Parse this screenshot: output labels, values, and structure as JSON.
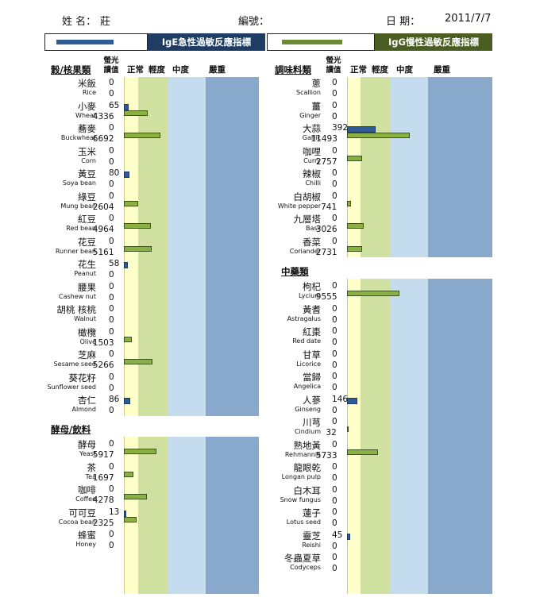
{
  "header": {
    "name_label": "姓 名：",
    "name_value": "莊",
    "id_label": "編號：",
    "date_label": "日 期：",
    "date_value": "2011/7/7"
  },
  "legend": {
    "ige_label": "IgE急性過敏反應指標",
    "igg_label": "IgG慢性過敏反應指標",
    "colors": {
      "ige": "#2f5c94",
      "igg": "#6e8a32",
      "ige_box": "#1f3d64",
      "igg_box": "#4b5e22"
    }
  },
  "column_headers": {
    "value": "螢光讀值",
    "normal": "正常",
    "mild": "輕度",
    "moderate": "中度",
    "severe": "嚴重"
  },
  "zones": {
    "normal": "#ffffcc",
    "mild": "#cfe0a0",
    "moderate": "#c4dcee",
    "severe": "#88a8cc"
  },
  "sections": [
    {
      "title": "穀/核果類",
      "items": [
        {
          "zh": "米飯",
          "en": "Rice",
          "ige": "0",
          "igg": "0"
        },
        {
          "zh": "小麥",
          "en": "Wheat",
          "ige": "65",
          "igg": "4336"
        },
        {
          "zh": "蕎麥",
          "en": "Buckwheat",
          "ige": "0",
          "igg": "6692"
        },
        {
          "zh": "玉米",
          "en": "Corn",
          "ige": "0",
          "igg": "0"
        },
        {
          "zh": "黃豆",
          "en": "Soya bean",
          "ige": "80",
          "igg": "0"
        },
        {
          "zh": "綠豆",
          "en": "Mung bean",
          "ige": "0",
          "igg": "2604"
        },
        {
          "zh": "紅豆",
          "en": "Red bean",
          "ige": "0",
          "igg": "4964"
        },
        {
          "zh": "花豆",
          "en": "Runner bean",
          "ige": "0",
          "igg": "5161"
        },
        {
          "zh": "花生",
          "en": "Peanut",
          "ige": "58",
          "igg": "0"
        },
        {
          "zh": "腰果",
          "en": "Cashew nut",
          "ige": "0",
          "igg": "0"
        },
        {
          "zh": "胡桃 核桃",
          "en": "Walnut",
          "ige": "0",
          "igg": "0"
        },
        {
          "zh": "橄欖",
          "en": "Olive",
          "ige": "0",
          "igg": "1503"
        },
        {
          "zh": "芝麻",
          "en": "Sesame seed",
          "ige": "0",
          "igg": "5266"
        },
        {
          "zh": "葵花籽",
          "en": "Sunflower seed",
          "ige": "0",
          "igg": "0"
        },
        {
          "zh": "杏仁",
          "en": "Almond",
          "ige": "86",
          "igg": "0"
        }
      ]
    },
    {
      "title": "酵母/飲料",
      "items": [
        {
          "zh": "酵母",
          "en": "Yeast",
          "ige": "0",
          "igg": "5917"
        },
        {
          "zh": "茶",
          "en": "Tea",
          "ige": "0",
          "igg": "1697"
        },
        {
          "zh": "咖啡",
          "en": "Coffee",
          "ige": "0",
          "igg": "4278"
        },
        {
          "zh": "可可豆",
          "en": "Cocoa bean",
          "ige": "13",
          "igg": "2325"
        },
        {
          "zh": "蜂蜜",
          "en": "Honey",
          "ige": "0",
          "igg": "0"
        }
      ]
    },
    {
      "title": "調味料類",
      "items": [
        {
          "zh": "蔥",
          "en": "Scallion",
          "ige": "0",
          "igg": "0"
        },
        {
          "zh": "薑",
          "en": "Ginger",
          "ige": "0",
          "igg": "0"
        },
        {
          "zh": "大蒜",
          "en": "Garlic",
          "ige": "392",
          "igg": "11493"
        },
        {
          "zh": "咖哩",
          "en": "Curry",
          "ige": "0",
          "igg": "2757"
        },
        {
          "zh": "辣椒",
          "en": "Chilli",
          "ige": "0",
          "igg": "0"
        },
        {
          "zh": "白胡椒",
          "en": "White pepper",
          "ige": "0",
          "igg": "741"
        },
        {
          "zh": "九層塔",
          "en": "Basil",
          "ige": "0",
          "igg": "3026"
        },
        {
          "zh": "香菜",
          "en": "Coriander",
          "ige": "0",
          "igg": "2731"
        }
      ]
    },
    {
      "title": "中藥類",
      "items": [
        {
          "zh": "枸杞",
          "en": "Lycium",
          "ige": "0",
          "igg": "9555"
        },
        {
          "zh": "黃耆",
          "en": "Astragalus",
          "ige": "0",
          "igg": "0"
        },
        {
          "zh": "紅棗",
          "en": "Red date",
          "ige": "0",
          "igg": "0"
        },
        {
          "zh": "甘草",
          "en": "Licorice",
          "ige": "0",
          "igg": "0"
        },
        {
          "zh": "當歸",
          "en": "Angelica",
          "ige": "0",
          "igg": "0"
        },
        {
          "zh": "人蔘",
          "en": "Ginseng",
          "ige": "146",
          "igg": "0"
        },
        {
          "zh": "川芎",
          "en": "Cindium",
          "ige": "0",
          "igg": "32"
        },
        {
          "zh": "熟地黃",
          "en": "Rehmannia",
          "ige": "0",
          "igg": "5733"
        },
        {
          "zh": "龍眼乾",
          "en": "Longan pulp",
          "ige": "0",
          "igg": "0"
        },
        {
          "zh": "白木耳",
          "en": "Snow fungus",
          "ige": "0",
          "igg": "0"
        },
        {
          "zh": "蓮子",
          "en": "Lotus seed",
          "ige": "0",
          "igg": "0"
        },
        {
          "zh": "靈芝",
          "en": "Reishi",
          "ige": "45",
          "igg": "0"
        },
        {
          "zh": "冬蟲夏草",
          "en": "Codyceps",
          "ige": "0",
          "igg": "0"
        }
      ]
    }
  ]
}
